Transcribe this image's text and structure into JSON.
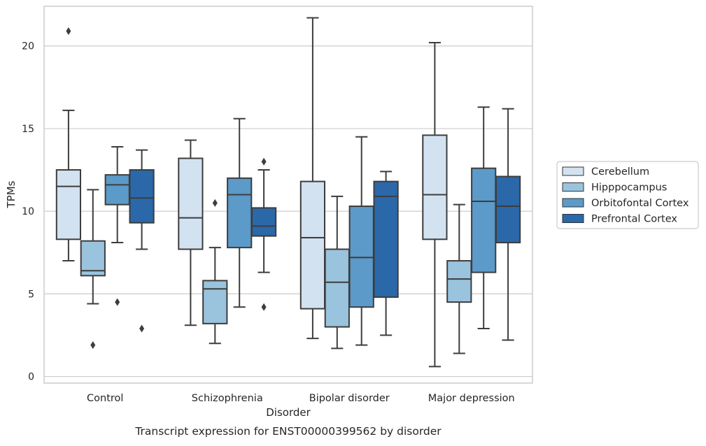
{
  "chart_data": {
    "type": "boxplot",
    "caption": "Transcript expression for ENST00000399562 by disorder",
    "xlabel": "Disorder",
    "ylabel": "TPMs",
    "ylim": [
      -0.4,
      22.4
    ],
    "yticks": [
      0,
      5,
      10,
      15,
      20
    ],
    "grid": true,
    "legend_position": "right",
    "categories": [
      "Control",
      "Schizophrenia",
      "Bipolar disorder",
      "Major depression"
    ],
    "series": [
      {
        "name": "Cerebellum",
        "color": "#d3e2f1",
        "boxes": [
          {
            "whisker_low": 7.0,
            "q1": 8.3,
            "median": 11.5,
            "q3": 12.5,
            "whisker_high": 16.1,
            "outliers": [
              20.9
            ]
          },
          {
            "whisker_low": 3.1,
            "q1": 7.7,
            "median": 9.6,
            "q3": 13.2,
            "whisker_high": 14.3,
            "outliers": []
          },
          {
            "whisker_low": 2.3,
            "q1": 4.1,
            "median": 8.4,
            "q3": 11.8,
            "whisker_high": 21.7,
            "outliers": []
          },
          {
            "whisker_low": 0.6,
            "q1": 8.3,
            "median": 11.0,
            "q3": 14.6,
            "whisker_high": 20.2,
            "outliers": []
          }
        ]
      },
      {
        "name": "Hipppocampus",
        "color": "#9ac3dd",
        "boxes": [
          {
            "whisker_low": 4.4,
            "q1": 6.1,
            "median": 6.4,
            "q3": 8.2,
            "whisker_high": 11.3,
            "outliers": [
              1.9
            ]
          },
          {
            "whisker_low": 2.0,
            "q1": 3.2,
            "median": 5.3,
            "q3": 5.8,
            "whisker_high": 7.8,
            "outliers": [
              10.5
            ]
          },
          {
            "whisker_low": 1.7,
            "q1": 3.0,
            "median": 5.7,
            "q3": 7.7,
            "whisker_high": 10.9,
            "outliers": []
          },
          {
            "whisker_low": 1.4,
            "q1": 4.5,
            "median": 5.9,
            "q3": 7.0,
            "whisker_high": 10.4,
            "outliers": []
          }
        ]
      },
      {
        "name": "Orbitofontal Cortex",
        "color": "#5b9ac9",
        "boxes": [
          {
            "whisker_low": 8.1,
            "q1": 10.4,
            "median": 11.6,
            "q3": 12.2,
            "whisker_high": 13.9,
            "outliers": [
              4.5
            ]
          },
          {
            "whisker_low": 4.2,
            "q1": 7.8,
            "median": 11.0,
            "q3": 12.0,
            "whisker_high": 15.6,
            "outliers": []
          },
          {
            "whisker_low": 1.9,
            "q1": 4.2,
            "median": 7.2,
            "q3": 10.3,
            "whisker_high": 14.5,
            "outliers": []
          },
          {
            "whisker_low": 2.9,
            "q1": 6.3,
            "median": 10.6,
            "q3": 12.6,
            "whisker_high": 16.3,
            "outliers": []
          }
        ]
      },
      {
        "name": "Prefrontal Cortex",
        "color": "#2a68a9",
        "boxes": [
          {
            "whisker_low": 7.7,
            "q1": 9.3,
            "median": 10.8,
            "q3": 12.5,
            "whisker_high": 13.7,
            "outliers": [
              2.9
            ]
          },
          {
            "whisker_low": 6.3,
            "q1": 8.5,
            "median": 9.1,
            "q3": 10.2,
            "whisker_high": 12.5,
            "outliers": [
              13.0,
              4.2
            ]
          },
          {
            "whisker_low": 2.5,
            "q1": 4.8,
            "median": 10.9,
            "q3": 11.8,
            "whisker_high": 12.4,
            "outliers": []
          },
          {
            "whisker_low": 2.2,
            "q1": 8.1,
            "median": 10.3,
            "q3": 12.1,
            "whisker_high": 16.2,
            "outliers": []
          }
        ]
      }
    ]
  }
}
